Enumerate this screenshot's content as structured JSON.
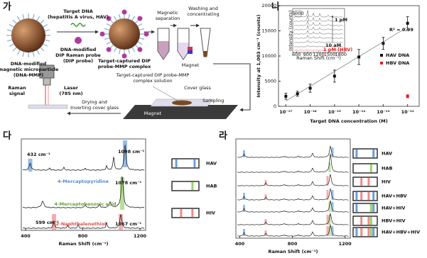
{
  "panel_labels": [
    "가",
    "나",
    "다",
    "라"
  ],
  "schematic": {
    "dna_mmp": [
      "DNA-modified",
      "magnetic microparticle",
      "(DNA-MMP)"
    ],
    "target": [
      "Target DNA",
      "(hepatitis A virus, HAV)"
    ],
    "probe": [
      "DNA-modified",
      "DIP Raman probe",
      "(DIP probe)"
    ],
    "complex": [
      "Target-captured DIP",
      "probe-MMP complex"
    ],
    "separation": [
      "Magnetic",
      "separation"
    ],
    "washing": [
      "Washing and",
      "concentrating"
    ],
    "magnet_tube": "Magnet",
    "solution": [
      "Target-captured DIP probe-MMP",
      "complex solution"
    ],
    "cover_glass": "Cover glass",
    "magnet_stage": "Magnet",
    "sampling": "Sampling",
    "drying": [
      "Drying and",
      "Inverting cover glass"
    ],
    "raman": [
      "Raman",
      "signal"
    ],
    "laser": [
      "Laser",
      "(785 nm)"
    ]
  },
  "chart_data": {
    "type": "scatter",
    "x_label": "Target DNA concentration (M)",
    "y_label": "Intensity at 1,003 cm⁻¹ (counts)",
    "xscale": "log",
    "xlim": [
      5e-18,
      3e-12
    ],
    "xticks": [
      {
        "value": 1e-17,
        "label": "10⁻¹⁷"
      },
      {
        "value": 1e-16,
        "label": "10⁻¹⁶"
      },
      {
        "value": 1e-15,
        "label": "10⁻¹⁵"
      },
      {
        "value": 1e-14,
        "label": "10⁻¹⁴"
      },
      {
        "value": 1e-13,
        "label": "10⁻¹³"
      },
      {
        "value": 1e-12,
        "label": "10⁻¹²"
      }
    ],
    "ylim": [
      0,
      20000
    ],
    "yticks": [
      0,
      5000,
      10000,
      15000,
      20000
    ],
    "series": [
      {
        "name": "HAV DNA",
        "color": "#111111",
        "x": [
          1e-17,
          3e-17,
          1e-16,
          1e-15,
          1e-14,
          1e-13,
          1e-12
        ],
        "values": [
          2000,
          2500,
          3600,
          6000,
          9800,
          12500,
          16500
        ],
        "errors": [
          600,
          500,
          800,
          1200,
          1500,
          1200,
          1300
        ]
      },
      {
        "name": "HBV DNA",
        "color": "#e02020",
        "x": [
          1e-12
        ],
        "values": [
          2000
        ],
        "errors": [
          300
        ]
      }
    ],
    "annotation": "R² = 0.99",
    "legend": "right",
    "fit_line": true,
    "inset": {
      "y_label": "Intensity (counts)",
      "x_label": "Raman Shift (cm⁻¹)",
      "xlim": [
        500,
        1900
      ],
      "xticks": [
        600,
        900,
        1200,
        1500,
        1800
      ],
      "scale_label": "5000",
      "top_label": "1 pM",
      "bottom_label": "10 aM",
      "hbv_label": "1 pM (HBV)"
    }
  },
  "panel_da": {
    "x_label": "Raman Shift (cm⁻¹)",
    "xlim": [
      370,
      1240
    ],
    "xticks": [
      400,
      800,
      1200
    ],
    "annotations": {
      "peak_1098": "1098 cm⁻¹",
      "peak_432": "432 cm⁻¹",
      "reporter_1": "4-Mercaptopyridine",
      "peak_1078": "1078 cm⁻¹",
      "reporter_2": "4-Mercaptobenzoic acid",
      "peak_599": "599 cm⁻¹",
      "reporter_3": "2-Naphthalenethiol",
      "peak_1067": "1067 cm⁻¹"
    },
    "codes": [
      "HAV",
      "HAB",
      "HIV"
    ]
  },
  "panel_ra": {
    "x_label": "Raman Shift (cm⁻¹)",
    "xlim": [
      370,
      1240
    ],
    "xticks": [
      400,
      800,
      1200
    ],
    "codes": [
      "HAV",
      "HAB",
      "HIV",
      "HAV+HBV",
      "HAV+HIV",
      "HBV+HIV",
      "HAV+HBV+HIV"
    ]
  }
}
